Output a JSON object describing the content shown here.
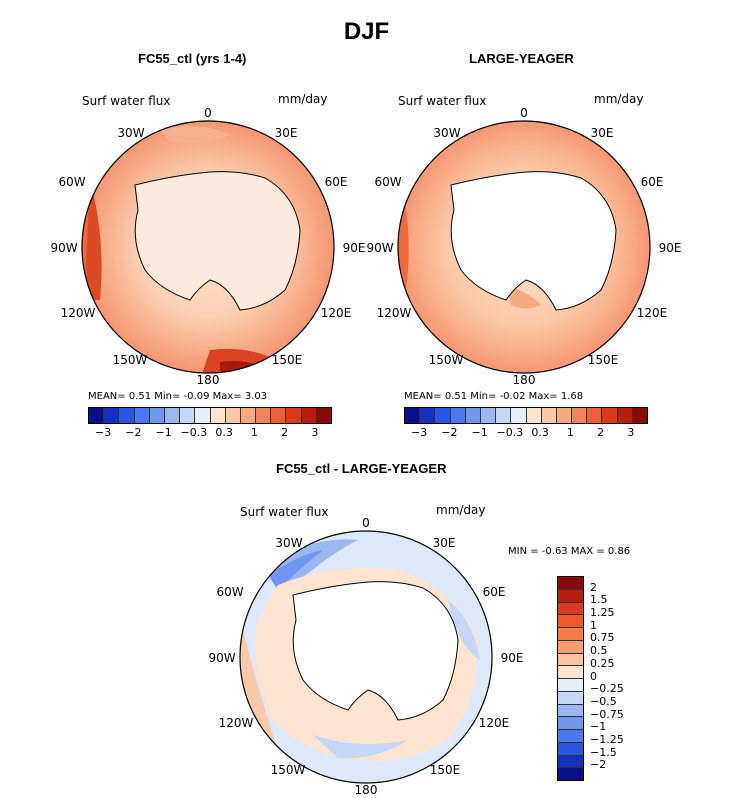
{
  "title": "DJF",
  "panels": [
    {
      "title": "FC55_ctl (yrs 1-4)",
      "variable": "Surf water flux",
      "units": "mm/day",
      "stats": "MEAN=   0.51  Min=  -0.09  Max=   3.03",
      "lon_labels": [
        "0",
        "30E",
        "60E",
        "90E",
        "120E",
        "150E",
        "180",
        "150W",
        "120W",
        "90W",
        "60W",
        "30W"
      ]
    },
    {
      "title": "LARGE-YEAGER",
      "variable": "Surf water flux",
      "units": "mm/day",
      "stats": "MEAN=   0.51  Min=  -0.02  Max=   1.68",
      "lon_labels": [
        "0",
        "30E",
        "60E",
        "90E",
        "120E",
        "150E",
        "180",
        "150W",
        "120W",
        "90W",
        "60W",
        "30W"
      ]
    },
    {
      "title": "FC55_ctl - LARGE-YEAGER",
      "variable": "Surf water flux",
      "units": "mm/day",
      "stats": "MIN =   -0.63  MAX =    0.86",
      "lon_labels": [
        "0",
        "30E",
        "60E",
        "90E",
        "120E",
        "150E",
        "180",
        "150W",
        "120W",
        "90W",
        "60W",
        "30W"
      ]
    }
  ],
  "colorbar_top": {
    "labels": [
      "-3",
      "-2",
      "-1",
      "-0.3",
      "0.3",
      "1",
      "2",
      "3"
    ],
    "colors": [
      "#0a0f8a",
      "#1530c0",
      "#2a55e0",
      "#4a78f0",
      "#7196f0",
      "#9cb6f2",
      "#c5d6f6",
      "#e6eefa",
      "#fde4d0",
      "#fbc9a8",
      "#f8a980",
      "#f3855a",
      "#ec5f35",
      "#dc3a1c",
      "#b81e0d",
      "#8a0a05"
    ]
  },
  "colorbar_diff": {
    "labels": [
      "2",
      "1.5",
      "1.25",
      "1",
      "0.75",
      "0.5",
      "0.25",
      "0",
      "-0.25",
      "-0.5",
      "-0.75",
      "-1",
      "-1.25",
      "-1.5",
      "-2"
    ],
    "colors": [
      "#8a0a05",
      "#b81e0d",
      "#dc3a1c",
      "#f4582a",
      "#f47a48",
      "#f89b70",
      "#fbc1a0",
      "#fde4d0",
      "#e6eefa",
      "#c5d6f6",
      "#9cb6f2",
      "#7196f0",
      "#4a78f0",
      "#2a55e0",
      "#1530c0",
      "#0a0f8a"
    ]
  }
}
